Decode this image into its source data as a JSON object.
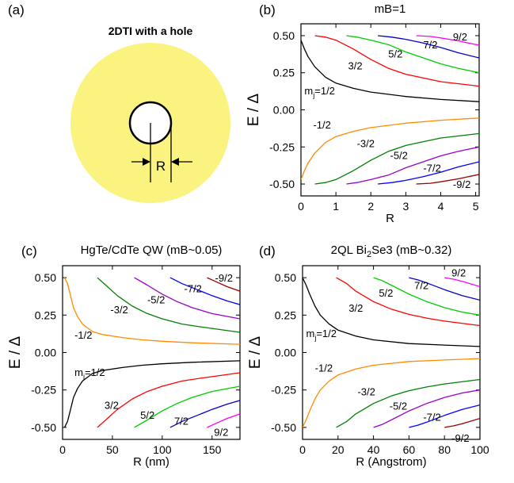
{
  "panel_a": {
    "label": "(a)",
    "title": "2DTI  with a hole",
    "r_label": "R",
    "disk_color": "#fbf37f"
  },
  "chart_data": [
    {
      "id": "b",
      "type": "line",
      "panel_label": "(b)",
      "title": "mB=1",
      "title_sub": "",
      "title_tail": "",
      "xlabel": "R",
      "ylabel": "E / Δ",
      "xlim": [
        0,
        5.1
      ],
      "ylim": [
        -0.58,
        0.58
      ],
      "xticks": [
        0,
        1,
        2,
        3,
        4,
        5
      ],
      "yticks": [
        -0.5,
        -0.25,
        0,
        0.25,
        0.5
      ],
      "ytick_labels": [
        "-0.50",
        "-0.25",
        "0.00",
        "0.25",
        "0.50"
      ],
      "series": [
        {
          "color": "#000000",
          "x": [
            0,
            0.1,
            0.2,
            0.4,
            0.7,
            1.0,
            1.5,
            2.0,
            2.5,
            3.0,
            4.0,
            5.1
          ],
          "y": [
            0.47,
            0.41,
            0.36,
            0.29,
            0.22,
            0.18,
            0.145,
            0.12,
            0.105,
            0.09,
            0.07,
            0.055
          ]
        },
        {
          "color": "#ff0000",
          "x": [
            0.4,
            0.7,
            1.0,
            1.5,
            2.0,
            2.5,
            3.0,
            4.0,
            5.1
          ],
          "y": [
            0.5,
            0.49,
            0.47,
            0.41,
            0.34,
            0.28,
            0.24,
            0.19,
            0.16
          ]
        },
        {
          "color": "#00cc00",
          "x": [
            1.3,
            1.6,
            2.0,
            2.5,
            3.0,
            3.5,
            4.0,
            4.5,
            5.1
          ],
          "y": [
            0.5,
            0.49,
            0.47,
            0.44,
            0.39,
            0.35,
            0.31,
            0.28,
            0.25
          ]
        },
        {
          "color": "#0000cc",
          "x": [
            2.2,
            2.6,
            3.0,
            3.5,
            4.0,
            4.5,
            5.1
          ],
          "y": [
            0.5,
            0.49,
            0.475,
            0.45,
            0.42,
            0.385,
            0.35
          ]
        },
        {
          "color": "#ff00ff",
          "x": [
            3.3,
            3.7,
            4.0,
            4.5,
            5.1
          ],
          "y": [
            0.5,
            0.495,
            0.485,
            0.465,
            0.435
          ]
        },
        {
          "color": "#ff8c00",
          "x": [
            0,
            0.1,
            0.2,
            0.4,
            0.7,
            1.0,
            1.5,
            2.0,
            2.5,
            3.0,
            4.0,
            5.1
          ],
          "y": [
            -0.47,
            -0.41,
            -0.36,
            -0.29,
            -0.22,
            -0.18,
            -0.145,
            -0.12,
            -0.105,
            -0.09,
            -0.07,
            -0.055
          ]
        },
        {
          "color": "#008000",
          "x": [
            0.4,
            0.7,
            1.0,
            1.5,
            2.0,
            2.5,
            3.0,
            4.0,
            5.1
          ],
          "y": [
            -0.5,
            -0.49,
            -0.47,
            -0.41,
            -0.34,
            -0.28,
            -0.24,
            -0.19,
            -0.16
          ]
        },
        {
          "color": "#9900cc",
          "x": [
            1.3,
            1.6,
            2.0,
            2.5,
            3.0,
            3.5,
            4.0,
            4.5,
            5.1
          ],
          "y": [
            -0.5,
            -0.49,
            -0.47,
            -0.44,
            -0.39,
            -0.35,
            -0.31,
            -0.28,
            -0.25
          ]
        },
        {
          "color": "#0000ff",
          "x": [
            2.2,
            2.6,
            3.0,
            3.5,
            4.0,
            4.5,
            5.1
          ],
          "y": [
            -0.5,
            -0.49,
            -0.475,
            -0.45,
            -0.42,
            -0.385,
            -0.35
          ]
        },
        {
          "color": "#990000",
          "x": [
            3.3,
            3.7,
            4.0,
            4.5,
            5.1
          ],
          "y": [
            -0.5,
            -0.495,
            -0.485,
            -0.465,
            -0.435
          ]
        }
      ],
      "annotations": [
        {
          "text": "m",
          "sub": "j",
          "tail": "=1/2",
          "x": 0.1,
          "y": 0.13
        },
        {
          "text": "3/2",
          "x": 1.35,
          "y": 0.3
        },
        {
          "text": "5/2",
          "x": 2.5,
          "y": 0.38
        },
        {
          "text": "7/2",
          "x": 3.5,
          "y": 0.44
        },
        {
          "text": "9/2",
          "x": 4.35,
          "y": 0.495
        },
        {
          "text": "-1/2",
          "x": 0.35,
          "y": -0.1
        },
        {
          "text": "-3/2",
          "x": 1.6,
          "y": -0.225
        },
        {
          "text": "-5/2",
          "x": 2.55,
          "y": -0.305
        },
        {
          "text": "-7/2",
          "x": 3.5,
          "y": -0.39
        },
        {
          "text": "-9/2",
          "x": 4.35,
          "y": -0.5
        }
      ]
    },
    {
      "id": "c",
      "type": "line",
      "panel_label": "(c)",
      "title": "HgTe/CdTe QW (mB~0.05)",
      "title_sub": "",
      "title_tail": "",
      "xlabel": "R (nm)",
      "ylabel": "E / Δ",
      "xlim": [
        0,
        178
      ],
      "ylim": [
        -0.58,
        0.58
      ],
      "xticks": [
        0,
        50,
        100,
        150
      ],
      "yticks": [
        -0.5,
        -0.25,
        0,
        0.25,
        0.5
      ],
      "ytick_labels": [
        "-0.50",
        "-0.25",
        "0.00",
        "0.25",
        "0.50"
      ],
      "series": [
        {
          "color": "#ff8c00",
          "x": [
            2,
            5,
            8,
            11,
            15,
            20,
            30,
            40,
            60,
            80,
            100,
            130,
            178
          ],
          "y": [
            0.5,
            0.46,
            0.38,
            0.3,
            0.24,
            0.19,
            0.14,
            0.12,
            0.1,
            0.085,
            0.075,
            0.065,
            0.055
          ]
        },
        {
          "color": "#008000",
          "x": [
            35,
            45,
            55,
            70,
            85,
            100,
            120,
            140,
            178
          ],
          "y": [
            0.5,
            0.44,
            0.38,
            0.31,
            0.26,
            0.225,
            0.19,
            0.17,
            0.135
          ]
        },
        {
          "color": "#9900cc",
          "x": [
            72,
            85,
            100,
            115,
            130,
            150,
            178
          ],
          "y": [
            0.5,
            0.45,
            0.39,
            0.34,
            0.3,
            0.26,
            0.225
          ]
        },
        {
          "color": "#0000ff",
          "x": [
            108,
            120,
            135,
            150,
            165,
            178
          ],
          "y": [
            0.5,
            0.46,
            0.42,
            0.38,
            0.345,
            0.32
          ]
        },
        {
          "color": "#990000",
          "x": [
            145,
            155,
            165,
            178
          ],
          "y": [
            0.5,
            0.47,
            0.44,
            0.41
          ]
        },
        {
          "color": "#000000",
          "x": [
            2,
            5,
            8,
            11,
            15,
            20,
            30,
            40,
            60,
            80,
            100,
            130,
            178
          ],
          "y": [
            -0.5,
            -0.46,
            -0.38,
            -0.3,
            -0.24,
            -0.19,
            -0.14,
            -0.12,
            -0.1,
            -0.085,
            -0.075,
            -0.065,
            -0.055
          ]
        },
        {
          "color": "#ff0000",
          "x": [
            35,
            45,
            55,
            70,
            85,
            100,
            120,
            140,
            178
          ],
          "y": [
            -0.5,
            -0.44,
            -0.38,
            -0.31,
            -0.26,
            -0.225,
            -0.19,
            -0.17,
            -0.135
          ]
        },
        {
          "color": "#00cc00",
          "x": [
            72,
            85,
            100,
            115,
            130,
            150,
            178
          ],
          "y": [
            -0.5,
            -0.45,
            -0.39,
            -0.34,
            -0.3,
            -0.26,
            -0.225
          ]
        },
        {
          "color": "#0000cc",
          "x": [
            108,
            120,
            135,
            150,
            165,
            178
          ],
          "y": [
            -0.5,
            -0.46,
            -0.42,
            -0.38,
            -0.345,
            -0.32
          ]
        },
        {
          "color": "#ff00ff",
          "x": [
            145,
            155,
            165,
            178
          ],
          "y": [
            -0.5,
            -0.47,
            -0.44,
            -0.41
          ]
        }
      ],
      "annotations": [
        {
          "text": "-1/2",
          "x": 12,
          "y": 0.12
        },
        {
          "text": "-3/2",
          "x": 48,
          "y": 0.29
        },
        {
          "text": "-5/2",
          "x": 85,
          "y": 0.355
        },
        {
          "text": "-7/2",
          "x": 122,
          "y": 0.43
        },
        {
          "text": "-9/2",
          "x": 153,
          "y": 0.5
        },
        {
          "text": "m",
          "sub": "j",
          "tail": "=1/2",
          "x": 12,
          "y": -0.13
        },
        {
          "text": "3/2",
          "x": 42,
          "y": -0.35
        },
        {
          "text": "5/2",
          "x": 78,
          "y": -0.415
        },
        {
          "text": "7/2",
          "x": 112,
          "y": -0.455
        },
        {
          "text": "9/2",
          "x": 152,
          "y": -0.53
        }
      ]
    },
    {
      "id": "d",
      "type": "line",
      "panel_label": "(d)",
      "title": "2QL Bi",
      "title_sub": "2",
      "title_tail": "Se3 (mB~0.32)",
      "xlabel": "R (Angstrom)",
      "ylabel": "E / Δ",
      "xlim": [
        0,
        100
      ],
      "ylim": [
        -0.58,
        0.58
      ],
      "xticks": [
        0,
        20,
        40,
        60,
        80,
        100
      ],
      "yticks": [
        -0.5,
        -0.25,
        0,
        0.25,
        0.5
      ],
      "ytick_labels": [
        "-0.50",
        "-0.25",
        "0.00",
        "0.25",
        "0.50"
      ],
      "series": [
        {
          "color": "#000000",
          "x": [
            0,
            2,
            4,
            7,
            10,
            15,
            20,
            30,
            40,
            60,
            80,
            100
          ],
          "y": [
            0.5,
            0.45,
            0.39,
            0.31,
            0.25,
            0.19,
            0.15,
            0.11,
            0.085,
            0.06,
            0.05,
            0.04
          ]
        },
        {
          "color": "#ff0000",
          "x": [
            19,
            25,
            30,
            40,
            50,
            60,
            70,
            80,
            100
          ],
          "y": [
            0.5,
            0.46,
            0.41,
            0.34,
            0.29,
            0.255,
            0.23,
            0.21,
            0.18
          ]
        },
        {
          "color": "#00cc00",
          "x": [
            40,
            45,
            50,
            60,
            70,
            80,
            90,
            100
          ],
          "y": [
            0.5,
            0.48,
            0.45,
            0.39,
            0.34,
            0.3,
            0.27,
            0.25
          ]
        },
        {
          "color": "#0000cc",
          "x": [
            60,
            65,
            70,
            80,
            90,
            100
          ],
          "y": [
            0.5,
            0.485,
            0.465,
            0.42,
            0.38,
            0.35
          ]
        },
        {
          "color": "#ff00ff",
          "x": [
            80,
            85,
            90,
            100
          ],
          "y": [
            0.5,
            0.49,
            0.475,
            0.44
          ]
        },
        {
          "color": "#ff8c00",
          "x": [
            0,
            2,
            4,
            7,
            10,
            15,
            20,
            30,
            40,
            60,
            80,
            100
          ],
          "y": [
            -0.5,
            -0.45,
            -0.39,
            -0.31,
            -0.25,
            -0.19,
            -0.15,
            -0.11,
            -0.085,
            -0.06,
            -0.05,
            -0.04
          ]
        },
        {
          "color": "#008000",
          "x": [
            19,
            25,
            30,
            40,
            50,
            60,
            70,
            80,
            100
          ],
          "y": [
            -0.5,
            -0.46,
            -0.41,
            -0.34,
            -0.29,
            -0.255,
            -0.23,
            -0.21,
            -0.18
          ]
        },
        {
          "color": "#9900cc",
          "x": [
            40,
            45,
            50,
            60,
            70,
            80,
            90,
            100
          ],
          "y": [
            -0.5,
            -0.48,
            -0.45,
            -0.39,
            -0.34,
            -0.3,
            -0.27,
            -0.25
          ]
        },
        {
          "color": "#0000ff",
          "x": [
            60,
            65,
            70,
            80,
            90,
            100
          ],
          "y": [
            -0.5,
            -0.485,
            -0.465,
            -0.42,
            -0.38,
            -0.35
          ]
        },
        {
          "color": "#990000",
          "x": [
            80,
            85,
            90,
            100
          ],
          "y": [
            -0.5,
            -0.49,
            -0.475,
            -0.44
          ]
        }
      ],
      "annotations": [
        {
          "text": "m",
          "sub": "j",
          "tail": "=1/2",
          "x": 2,
          "y": 0.13
        },
        {
          "text": "3/2",
          "x": 26,
          "y": 0.3
        },
        {
          "text": "5/2",
          "x": 43,
          "y": 0.4
        },
        {
          "text": "7/2",
          "x": 63,
          "y": 0.45
        },
        {
          "text": "9/2",
          "x": 84,
          "y": 0.535
        },
        {
          "text": "-1/2",
          "x": 7,
          "y": -0.1
        },
        {
          "text": "-3/2",
          "x": 31,
          "y": -0.26
        },
        {
          "text": "-5/2",
          "x": 49,
          "y": -0.355
        },
        {
          "text": "-7/2",
          "x": 68,
          "y": -0.43
        },
        {
          "text": "-9/2",
          "x": 84,
          "y": -0.57
        }
      ]
    }
  ]
}
